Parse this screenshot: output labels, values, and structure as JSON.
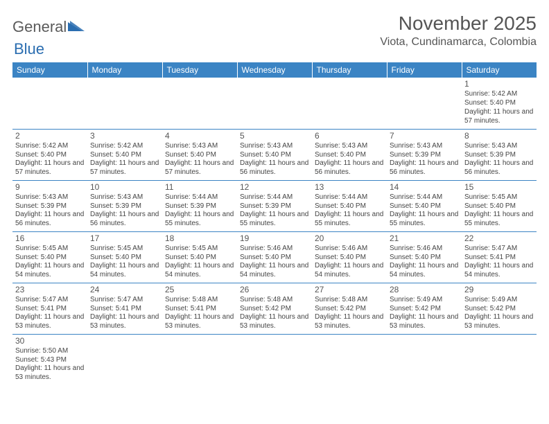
{
  "logo": {
    "text1": "General",
    "text2": "Blue"
  },
  "title": "November 2025",
  "location": "Viota, Cundinamarca, Colombia",
  "colors": {
    "header_bg": "#3b84c4",
    "header_text": "#ffffff",
    "border": "#3b84c4",
    "body_text": "#444444",
    "title_text": "#555555",
    "logo_gray": "#5a5a5a",
    "logo_blue": "#2a6db0",
    "background": "#ffffff"
  },
  "typography": {
    "month_title_fontsize": 28,
    "location_fontsize": 16,
    "dayheader_fontsize": 12,
    "daynum_fontsize": 12,
    "cell_fontsize": 10
  },
  "day_headers": [
    "Sunday",
    "Monday",
    "Tuesday",
    "Wednesday",
    "Thursday",
    "Friday",
    "Saturday"
  ],
  "weeks": [
    [
      null,
      null,
      null,
      null,
      null,
      null,
      {
        "n": "1",
        "sr": "5:42 AM",
        "ss": "5:40 PM",
        "dl": "11 hours and 57 minutes."
      }
    ],
    [
      {
        "n": "2",
        "sr": "5:42 AM",
        "ss": "5:40 PM",
        "dl": "11 hours and 57 minutes."
      },
      {
        "n": "3",
        "sr": "5:42 AM",
        "ss": "5:40 PM",
        "dl": "11 hours and 57 minutes."
      },
      {
        "n": "4",
        "sr": "5:43 AM",
        "ss": "5:40 PM",
        "dl": "11 hours and 57 minutes."
      },
      {
        "n": "5",
        "sr": "5:43 AM",
        "ss": "5:40 PM",
        "dl": "11 hours and 56 minutes."
      },
      {
        "n": "6",
        "sr": "5:43 AM",
        "ss": "5:40 PM",
        "dl": "11 hours and 56 minutes."
      },
      {
        "n": "7",
        "sr": "5:43 AM",
        "ss": "5:39 PM",
        "dl": "11 hours and 56 minutes."
      },
      {
        "n": "8",
        "sr": "5:43 AM",
        "ss": "5:39 PM",
        "dl": "11 hours and 56 minutes."
      }
    ],
    [
      {
        "n": "9",
        "sr": "5:43 AM",
        "ss": "5:39 PM",
        "dl": "11 hours and 56 minutes."
      },
      {
        "n": "10",
        "sr": "5:43 AM",
        "ss": "5:39 PM",
        "dl": "11 hours and 56 minutes."
      },
      {
        "n": "11",
        "sr": "5:44 AM",
        "ss": "5:39 PM",
        "dl": "11 hours and 55 minutes."
      },
      {
        "n": "12",
        "sr": "5:44 AM",
        "ss": "5:39 PM",
        "dl": "11 hours and 55 minutes."
      },
      {
        "n": "13",
        "sr": "5:44 AM",
        "ss": "5:40 PM",
        "dl": "11 hours and 55 minutes."
      },
      {
        "n": "14",
        "sr": "5:44 AM",
        "ss": "5:40 PM",
        "dl": "11 hours and 55 minutes."
      },
      {
        "n": "15",
        "sr": "5:45 AM",
        "ss": "5:40 PM",
        "dl": "11 hours and 55 minutes."
      }
    ],
    [
      {
        "n": "16",
        "sr": "5:45 AM",
        "ss": "5:40 PM",
        "dl": "11 hours and 54 minutes."
      },
      {
        "n": "17",
        "sr": "5:45 AM",
        "ss": "5:40 PM",
        "dl": "11 hours and 54 minutes."
      },
      {
        "n": "18",
        "sr": "5:45 AM",
        "ss": "5:40 PM",
        "dl": "11 hours and 54 minutes."
      },
      {
        "n": "19",
        "sr": "5:46 AM",
        "ss": "5:40 PM",
        "dl": "11 hours and 54 minutes."
      },
      {
        "n": "20",
        "sr": "5:46 AM",
        "ss": "5:40 PM",
        "dl": "11 hours and 54 minutes."
      },
      {
        "n": "21",
        "sr": "5:46 AM",
        "ss": "5:40 PM",
        "dl": "11 hours and 54 minutes."
      },
      {
        "n": "22",
        "sr": "5:47 AM",
        "ss": "5:41 PM",
        "dl": "11 hours and 54 minutes."
      }
    ],
    [
      {
        "n": "23",
        "sr": "5:47 AM",
        "ss": "5:41 PM",
        "dl": "11 hours and 53 minutes."
      },
      {
        "n": "24",
        "sr": "5:47 AM",
        "ss": "5:41 PM",
        "dl": "11 hours and 53 minutes."
      },
      {
        "n": "25",
        "sr": "5:48 AM",
        "ss": "5:41 PM",
        "dl": "11 hours and 53 minutes."
      },
      {
        "n": "26",
        "sr": "5:48 AM",
        "ss": "5:42 PM",
        "dl": "11 hours and 53 minutes."
      },
      {
        "n": "27",
        "sr": "5:48 AM",
        "ss": "5:42 PM",
        "dl": "11 hours and 53 minutes."
      },
      {
        "n": "28",
        "sr": "5:49 AM",
        "ss": "5:42 PM",
        "dl": "11 hours and 53 minutes."
      },
      {
        "n": "29",
        "sr": "5:49 AM",
        "ss": "5:42 PM",
        "dl": "11 hours and 53 minutes."
      }
    ],
    [
      {
        "n": "30",
        "sr": "5:50 AM",
        "ss": "5:43 PM",
        "dl": "11 hours and 53 minutes."
      },
      null,
      null,
      null,
      null,
      null,
      null
    ]
  ],
  "labels": {
    "sunrise": "Sunrise: ",
    "sunset": "Sunset: ",
    "daylight": "Daylight: "
  }
}
